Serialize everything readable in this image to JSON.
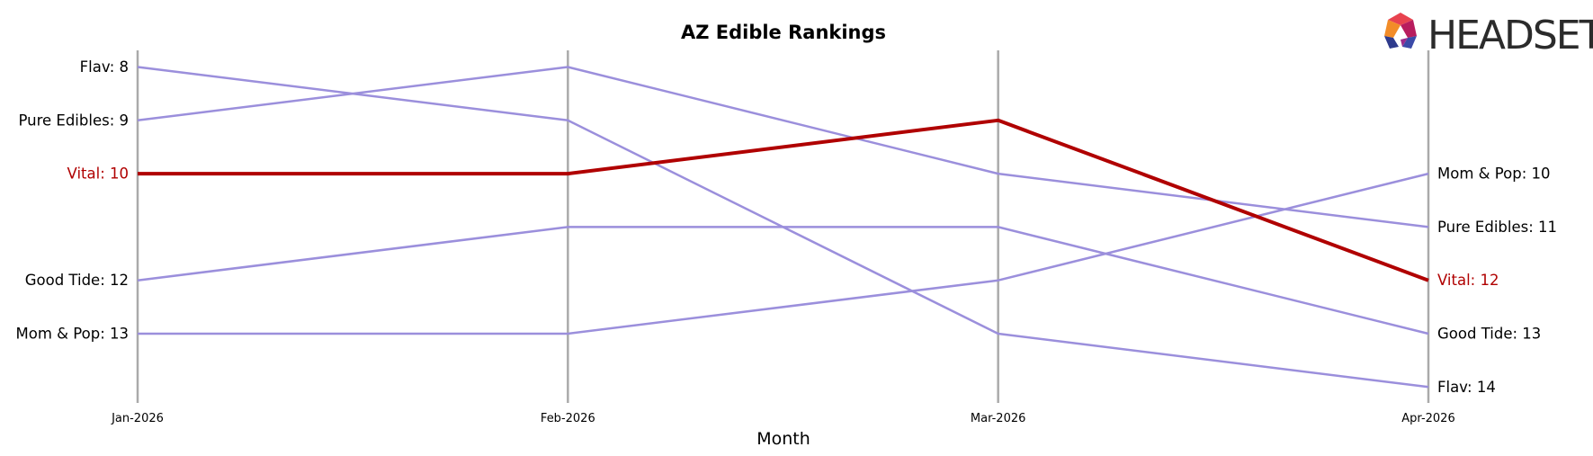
{
  "chart_data": {
    "type": "line",
    "title": "AZ Edible Rankings",
    "xlabel": "Month",
    "ylabel": "",
    "x": [
      "Jan-2026",
      "Feb-2026",
      "Mar-2026",
      "Apr-2026"
    ],
    "y_inverted": true,
    "ylim": [
      7.1,
      14.4
    ],
    "grid": "vertical lines at each month",
    "series": [
      {
        "name": "Flav",
        "values": [
          8,
          9,
          13,
          14
        ],
        "color": "#9b8fdc",
        "highlight": false
      },
      {
        "name": "Pure Edibles",
        "values": [
          9,
          8,
          10,
          11
        ],
        "color": "#9b8fdc",
        "highlight": false
      },
      {
        "name": "Vital",
        "values": [
          10,
          10,
          9,
          12
        ],
        "color": "#b00000",
        "highlight": true
      },
      {
        "name": "Good Tide",
        "values": [
          12,
          11,
          11,
          13
        ],
        "color": "#9b8fdc",
        "highlight": false
      },
      {
        "name": "Mom & Pop",
        "values": [
          13,
          13,
          12,
          10
        ],
        "color": "#9b8fdc",
        "highlight": false
      }
    ],
    "start_labels": [
      "Flav: 8",
      "Pure Edibles: 9",
      "Vital: 10",
      "Good Tide: 12",
      "Mom & Pop: 13"
    ],
    "end_labels": [
      "Flav: 14",
      "Pure Edibles: 11",
      "Vital: 12",
      "Good Tide: 13",
      "Mom & Pop: 10"
    ]
  },
  "logo": {
    "text": "HEADSET",
    "colors": [
      "#e8434f",
      "#b81d5e",
      "#f28c28",
      "#9a2c8e",
      "#2e3a8c"
    ]
  },
  "colors": {
    "axis_line": "#aaaaaa",
    "highlight_label": "#b00000",
    "default_label": "#000000"
  }
}
